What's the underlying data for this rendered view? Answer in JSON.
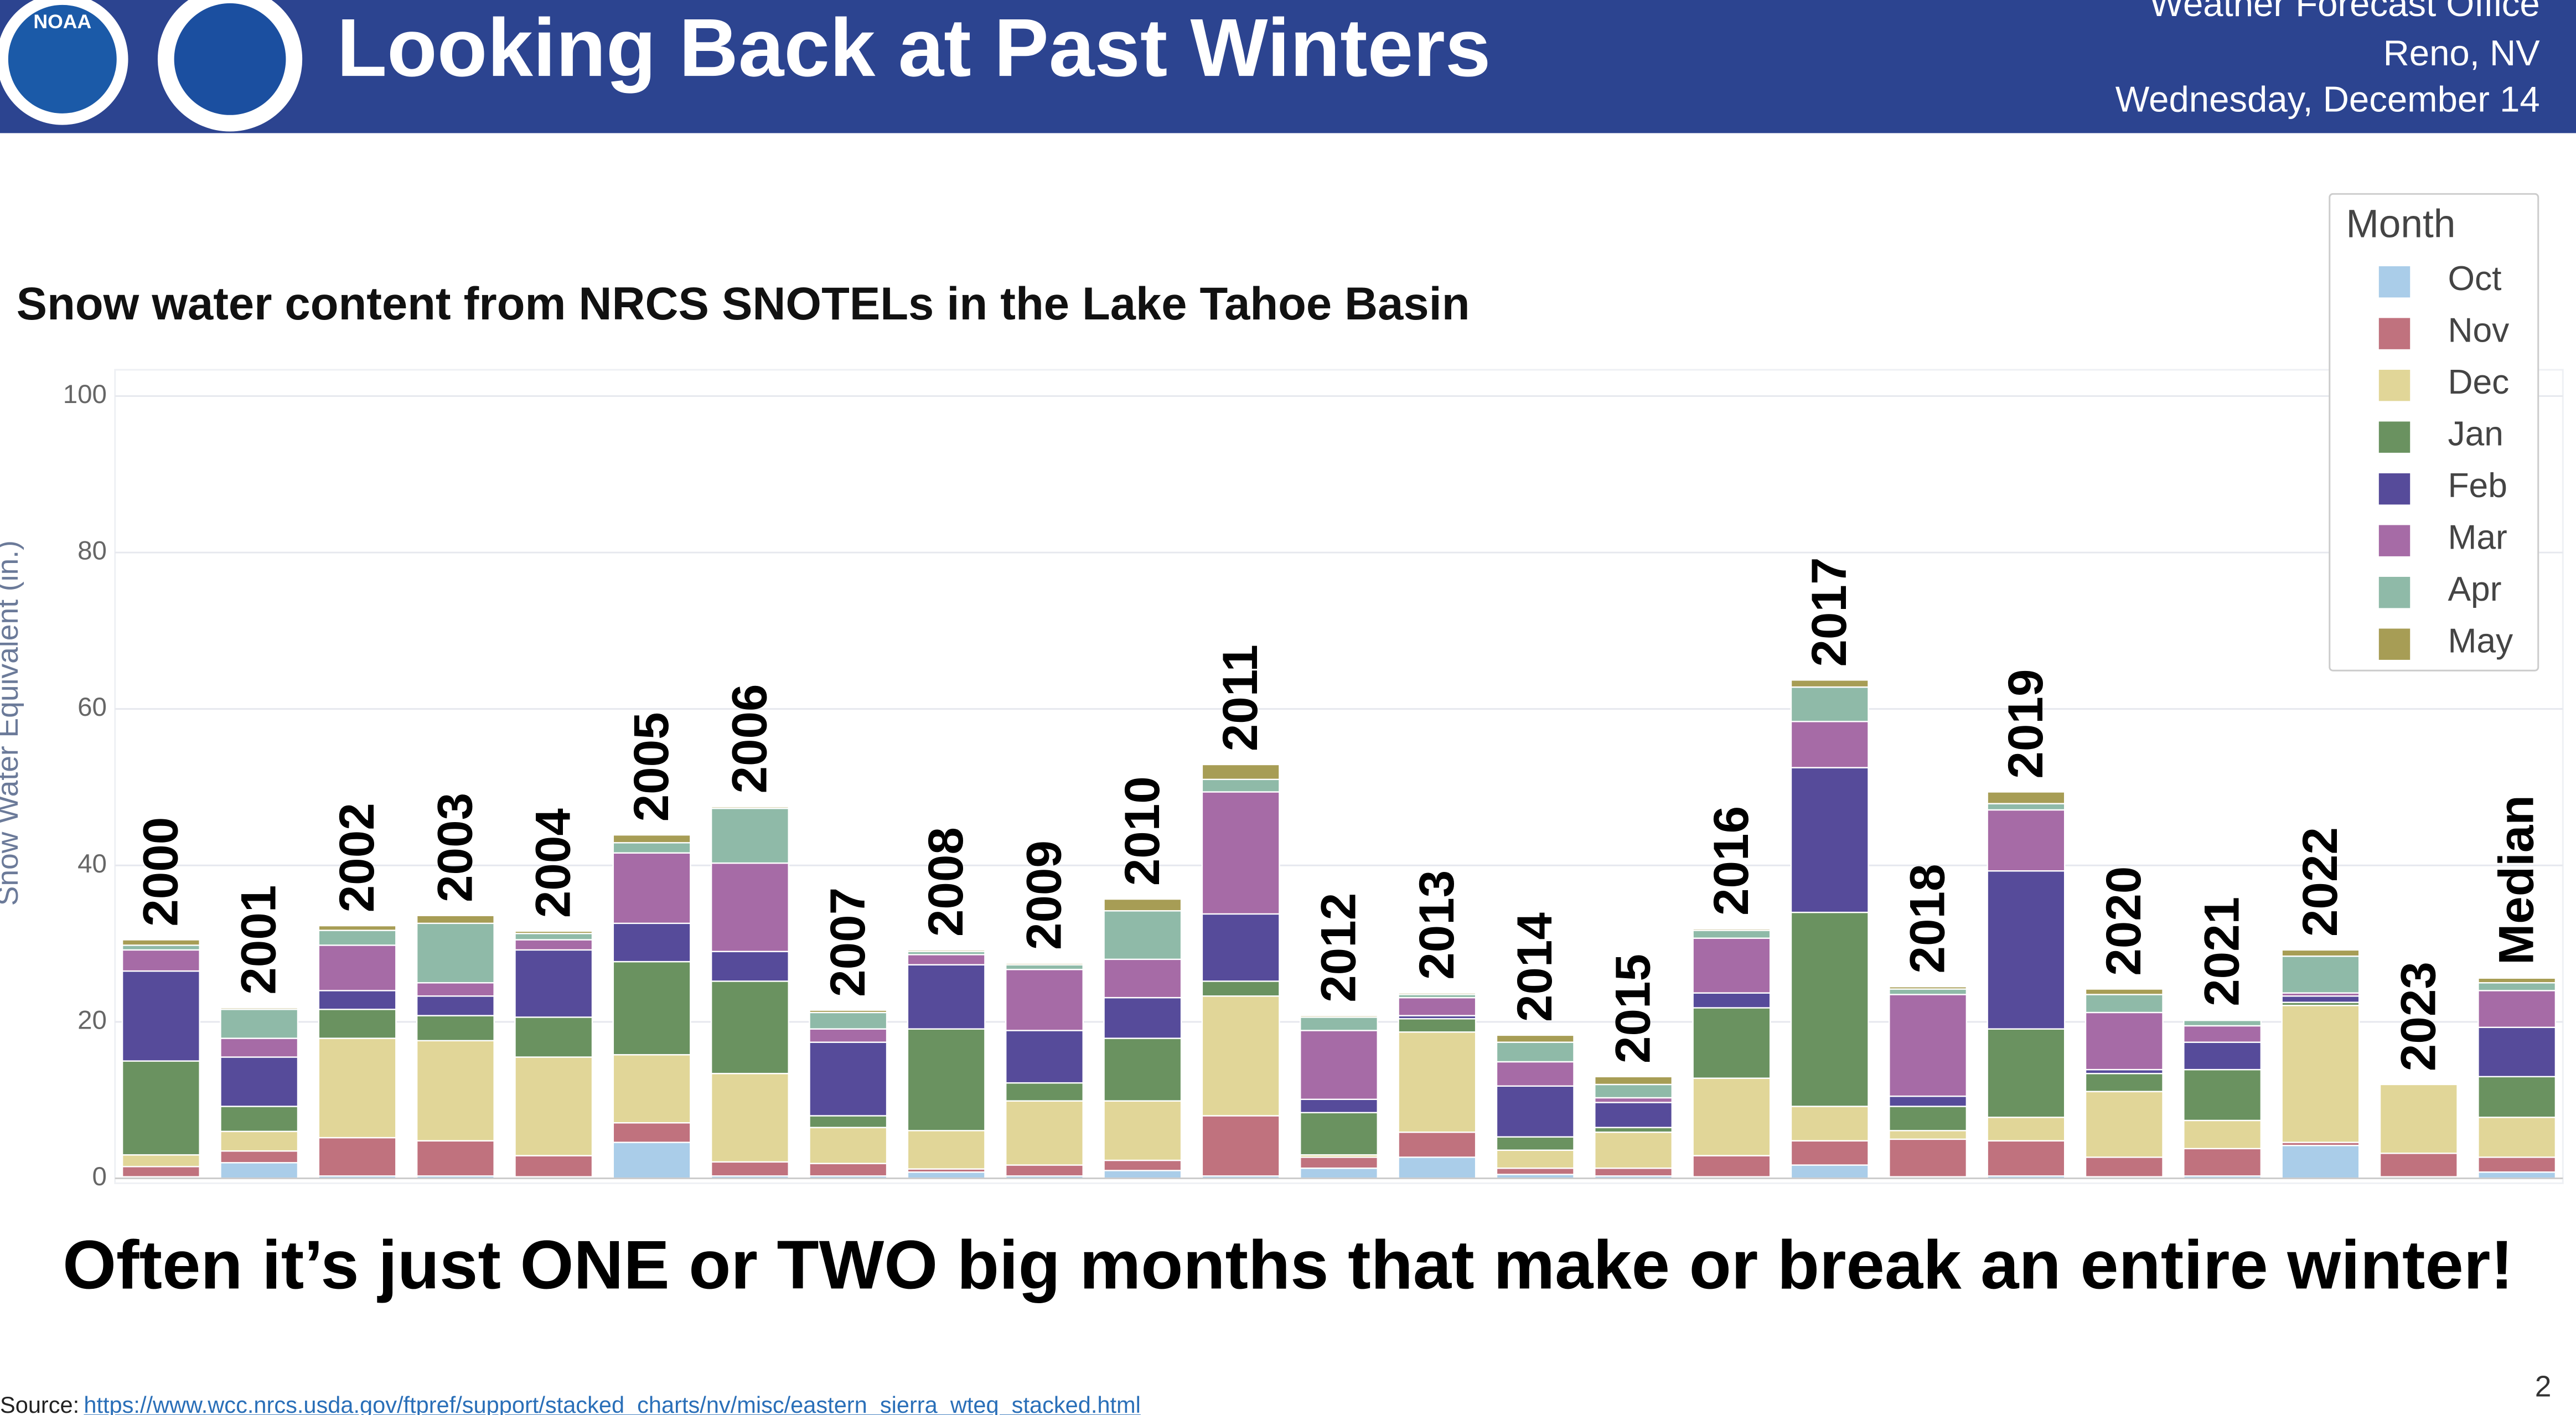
{
  "header": {
    "title": "Looking Back at Past Winters",
    "logo_text": "NOAA",
    "office": "Weather Forecast Office",
    "location": "Reno, NV",
    "date": "Wednesday, December 14"
  },
  "chart_data": {
    "type": "stacked-bar",
    "title": "Snow water content from NRCS SNOTELs in the Lake Tahoe Basin",
    "y_label": "Snow Water Equivalent (in.)",
    "legend_title": "Month",
    "legend": "top-right",
    "grid": true,
    "ylim": [
      0,
      100
    ],
    "yticks": [
      0,
      20,
      40,
      60,
      80,
      100
    ],
    "categories": [
      "2000",
      "2001",
      "2002",
      "2003",
      "2004",
      "2005",
      "2006",
      "2007",
      "2008",
      "2009",
      "2010",
      "2011",
      "2012",
      "2013",
      "2014",
      "2015",
      "2016",
      "2017",
      "2018",
      "2019",
      "2020",
      "2021",
      "2022",
      "2023",
      "Median"
    ],
    "series": [
      {
        "name": "Oct",
        "color": "#aacde9",
        "values": [
          0.2,
          2,
          0.3,
          0.3,
          0.2,
          4.6,
          0.3,
          0.3,
          0.8,
          0.3,
          1,
          0.3,
          1.3,
          2.7,
          0.5,
          0.3,
          0.2,
          1.7,
          0.2,
          0.3,
          0.2,
          0.3,
          4.2,
          0.2,
          0.8
        ]
      },
      {
        "name": "Nov",
        "color": "#c0727e",
        "values": [
          1.3,
          1.5,
          4.9,
          4.5,
          2.7,
          2.5,
          1.8,
          1.6,
          0.4,
          1.4,
          1.3,
          7.7,
          1.4,
          3.2,
          0.8,
          1,
          2.7,
          3.1,
          4.8,
          4.5,
          2.5,
          3.5,
          0.4,
          3,
          1.9
        ]
      },
      {
        "name": "Dec",
        "color": "#e1d698",
        "values": [
          1.5,
          2.5,
          12.7,
          12.8,
          12.6,
          8.7,
          11.3,
          4.6,
          4.9,
          8.2,
          7.6,
          15.3,
          0.3,
          12.8,
          2.3,
          4.6,
          9.9,
          4.4,
          1.1,
          3,
          8.4,
          3.6,
          17.5,
          8.8,
          5.1
        ]
      },
      {
        "name": "Jan",
        "color": "#6a9260",
        "values": [
          12,
          3.2,
          3.7,
          3.2,
          5.1,
          11.9,
          11.8,
          1.5,
          13,
          2.3,
          8,
          1.9,
          5.4,
          1.7,
          1.7,
          0.6,
          9,
          24.8,
          3.1,
          11.3,
          2.3,
          6.5,
          0.4,
          0,
          5.2
        ]
      },
      {
        "name": "Feb",
        "color": "#564b9a",
        "values": [
          11.5,
          6.3,
          2.4,
          2.5,
          8.6,
          4.9,
          3.8,
          9.4,
          8.2,
          6.7,
          5.2,
          8.6,
          1.7,
          0.4,
          6.5,
          3.2,
          1.9,
          18.5,
          1.3,
          20.2,
          0.5,
          3.5,
          0.8,
          0,
          6.3
        ]
      },
      {
        "name": "Mar",
        "color": "#a66ba6",
        "values": [
          2.7,
          2.4,
          5.8,
          1.7,
          1.3,
          9,
          11.3,
          1.7,
          1.3,
          7.8,
          4.9,
          15.6,
          8.8,
          2.3,
          3.1,
          0.6,
          7,
          5.9,
          13,
          7.8,
          7.3,
          2.1,
          0.4,
          0,
          4.7
        ]
      },
      {
        "name": "Apr",
        "color": "#8fbaa8",
        "values": [
          0.6,
          3.7,
          1.9,
          7.6,
          0.8,
          1.3,
          7,
          2.1,
          0.4,
          0.6,
          6.2,
          1.6,
          1.7,
          0.4,
          2.5,
          1.7,
          1,
          4.4,
          0.7,
          0.8,
          2.3,
          0.7,
          4.7,
          0,
          1
        ]
      },
      {
        "name": "May",
        "color": "#a79d55",
        "values": [
          0.7,
          0.2,
          0.6,
          1,
          0.3,
          1,
          0.2,
          0.3,
          0.2,
          0.2,
          1.5,
          1.9,
          0.2,
          0.2,
          0.9,
          1,
          0.2,
          0.9,
          0.3,
          1.5,
          0.7,
          0.1,
          0.8,
          0,
          0.6
        ]
      }
    ]
  },
  "headline": "Often it’s just ONE or TWO big months that make or break an entire winter!",
  "footer": {
    "source_label": "Source:",
    "source_url": "https://www.wcc.nrcs.usda.gov/ftpref/support/stacked_charts/nv/misc/eastern_sierra_wteq_stacked.html",
    "page_number": "2"
  }
}
